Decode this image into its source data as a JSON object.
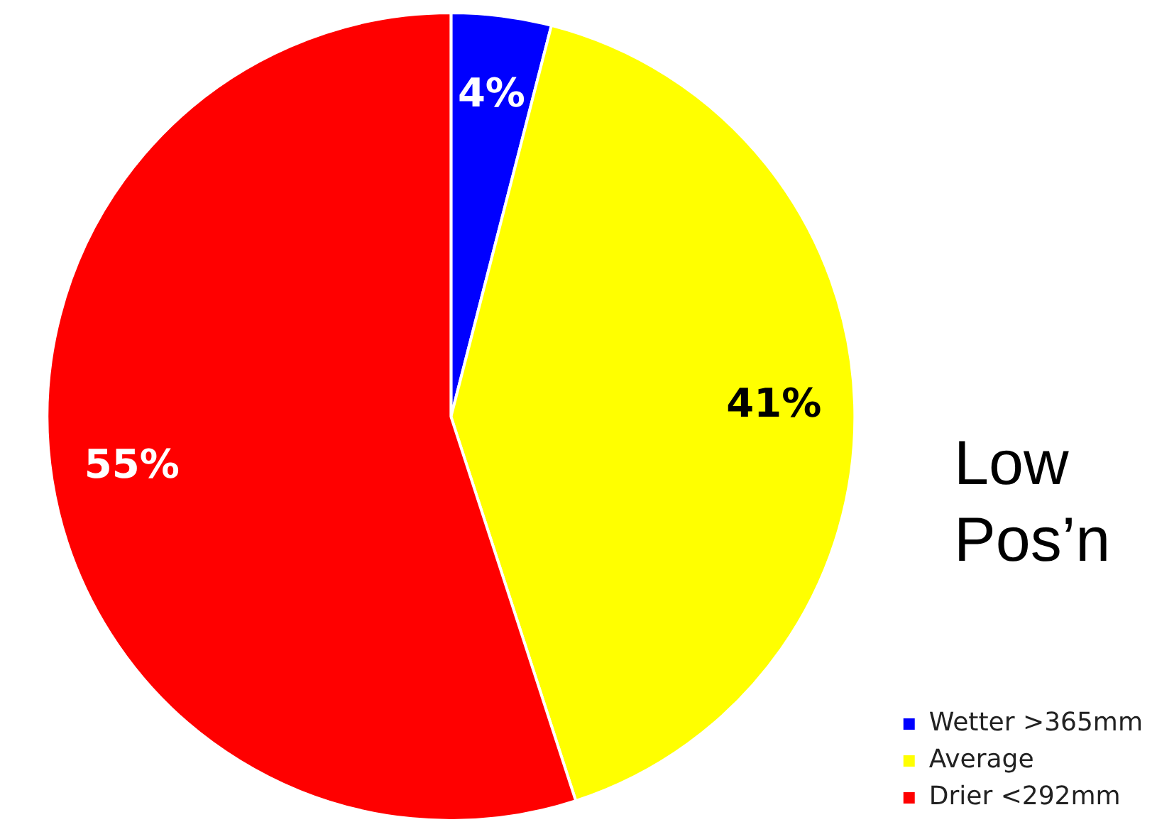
{
  "chart_data": {
    "type": "pie",
    "title": "Low Pos’n",
    "categories": [
      "Wetter >365mm",
      "Average",
      "Drier <292mm"
    ],
    "values": [
      4,
      41,
      55
    ],
    "colors": [
      "#0000ff",
      "#ffff00",
      "#ff0000"
    ],
    "value_labels": [
      "4%",
      "41%",
      "55%"
    ],
    "legend": "bottom right"
  }
}
